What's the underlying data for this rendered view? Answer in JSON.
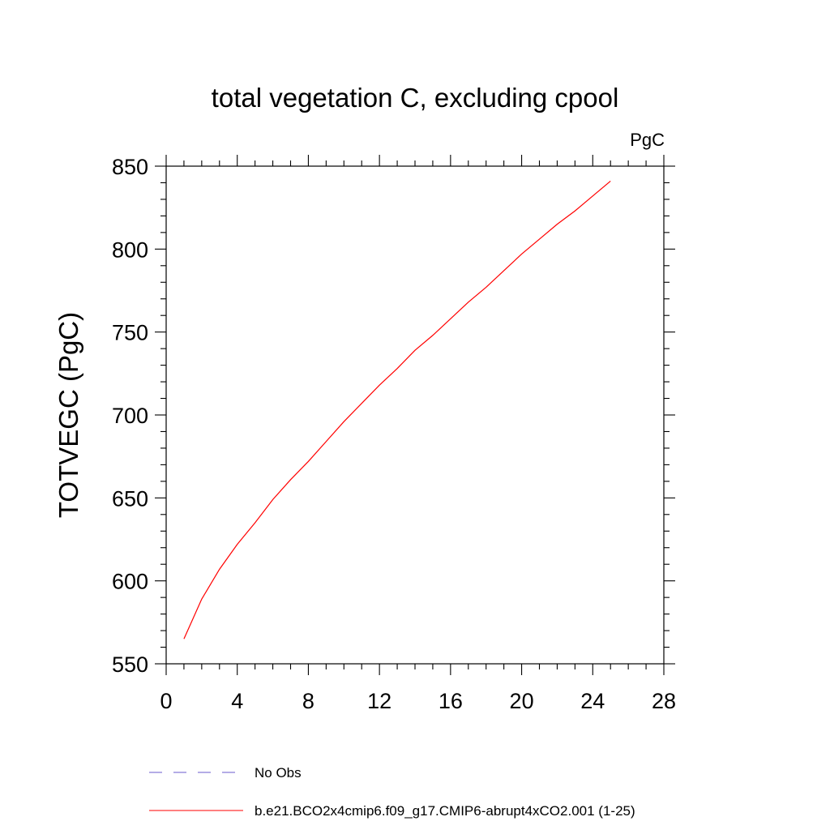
{
  "chart_data": {
    "type": "line",
    "title": "total vegetation C, excluding cpool",
    "units": "PgC",
    "xlabel": "",
    "ylabel": "TOTVEGC  (PgC)",
    "xlim": [
      0,
      28
    ],
    "ylim": [
      550,
      850
    ],
    "xticks": [
      0,
      4,
      8,
      12,
      16,
      20,
      24,
      28
    ],
    "xminor_step": 1,
    "yticks": [
      550,
      600,
      650,
      700,
      750,
      800,
      850
    ],
    "yminor_step": 10,
    "grid": false,
    "legend_position": "bottom-left",
    "series": [
      {
        "name": "No Obs",
        "color": "#6a5acd",
        "style": "dashed",
        "x": [],
        "y": []
      },
      {
        "name": "b.e21.BCO2x4cmip6.f09_g17.CMIP6-abrupt4xCO2.001 (1-25)",
        "color": "#ff0000",
        "style": "solid",
        "x": [
          1,
          2,
          3,
          4,
          5,
          6,
          7,
          8,
          9,
          10,
          11,
          12,
          13,
          14,
          15,
          16,
          17,
          18,
          19,
          20,
          21,
          22,
          23,
          24,
          25
        ],
        "y": [
          565,
          589,
          607,
          622,
          635,
          649,
          661,
          672,
          684,
          696,
          707,
          718,
          728,
          739,
          748,
          758,
          768,
          777,
          787,
          797,
          806,
          815,
          823,
          832,
          841
        ]
      }
    ]
  }
}
